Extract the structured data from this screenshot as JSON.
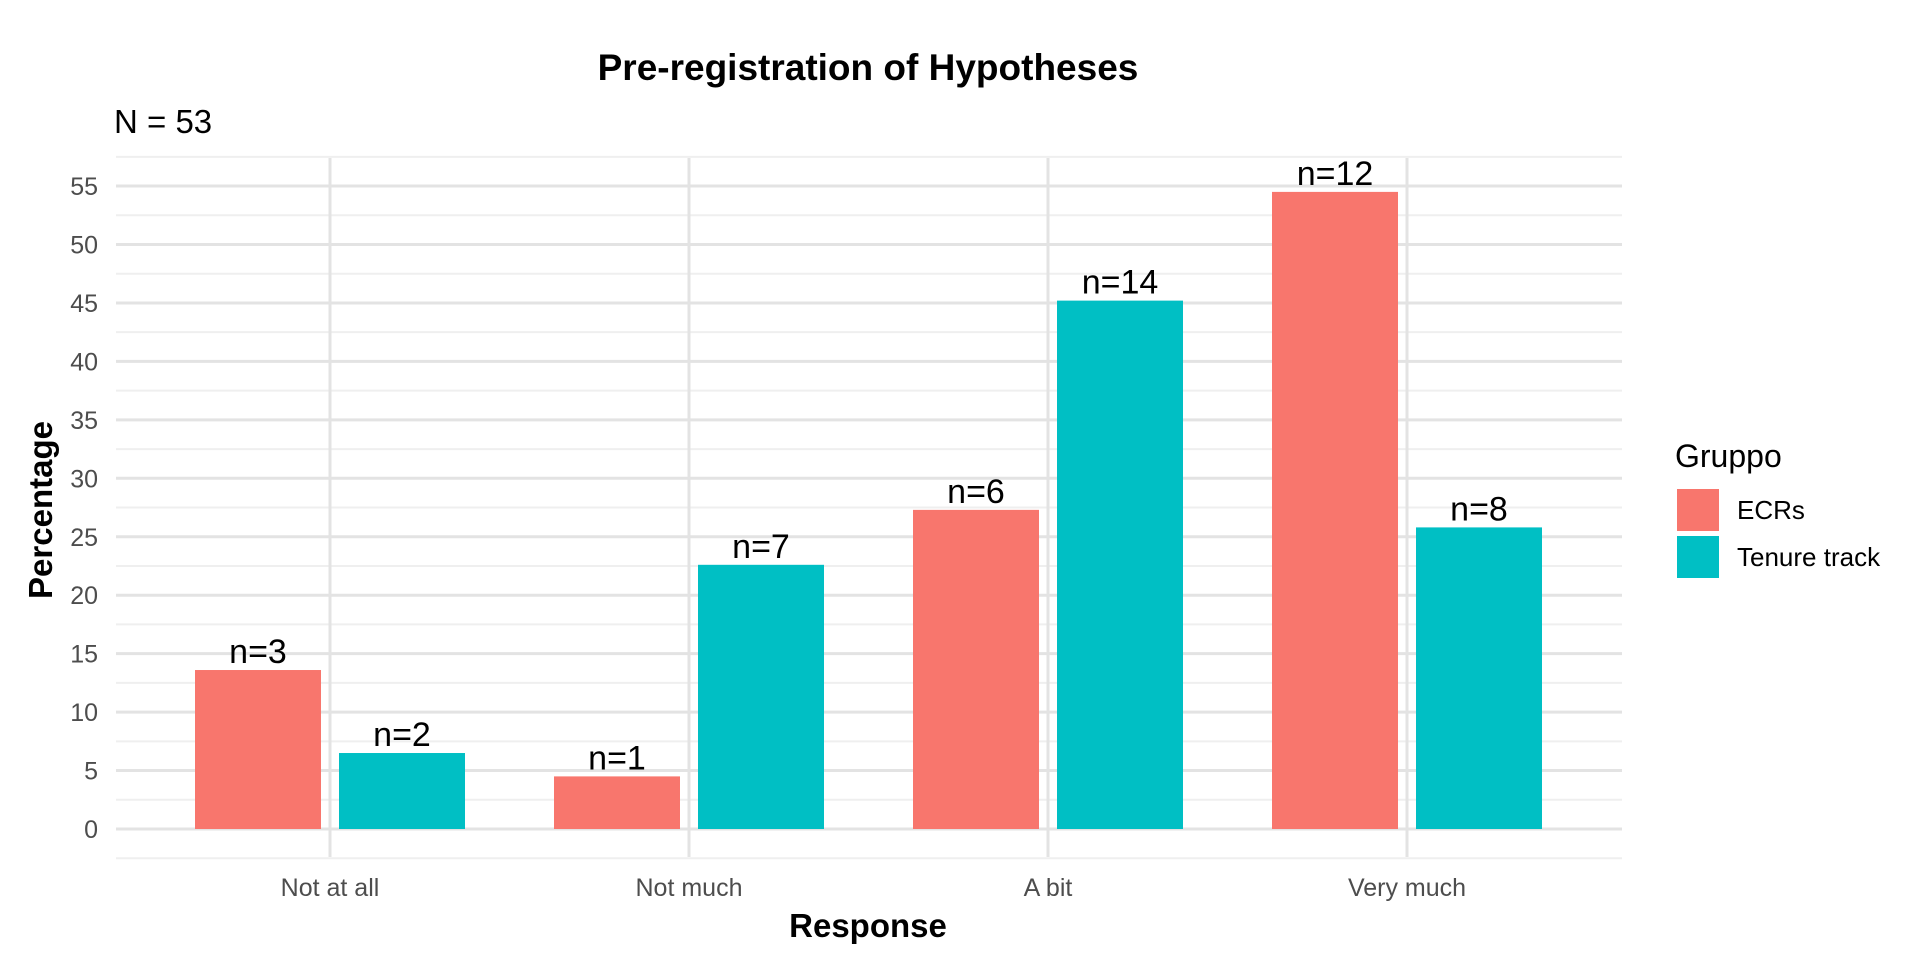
{
  "chart_data": {
    "type": "bar",
    "title": "Pre-registration of Hypotheses",
    "subtitle": "N = 53",
    "xlabel": "Response",
    "ylabel": "Percentage",
    "categories": [
      "Not at all",
      "Not much",
      "A bit",
      "Very much"
    ],
    "series": [
      {
        "name": "ECRs",
        "color": "#F8766D",
        "values": [
          13.6,
          4.5,
          27.3,
          54.5
        ],
        "labels": [
          "n=3",
          "n=1",
          "n=6",
          "n=12"
        ]
      },
      {
        "name": "Tenure track",
        "color": "#00BFC4",
        "values": [
          6.5,
          22.6,
          45.2,
          25.8
        ],
        "labels": [
          "n=2",
          "n=7",
          "n=14",
          "n=8"
        ]
      }
    ],
    "ylim": [
      0,
      57.5
    ],
    "yticks": [
      0,
      5,
      10,
      15,
      20,
      25,
      30,
      35,
      40,
      45,
      50,
      55
    ],
    "grid": true,
    "legend_title": "Gruppo",
    "legend_position": "right"
  }
}
